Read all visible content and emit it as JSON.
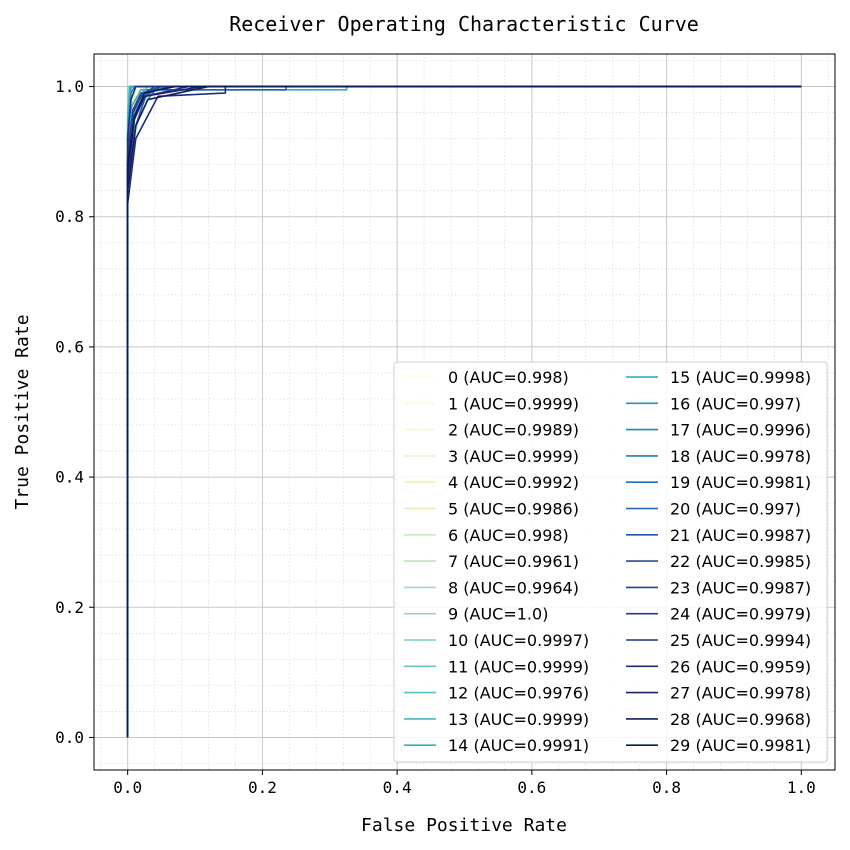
{
  "chart_data": {
    "type": "line",
    "title": "Receiver Operating Characteristic Curve",
    "xlabel": "False Positive Rate",
    "ylabel": "True Positive Rate",
    "xlim": [
      -0.05,
      1.05
    ],
    "ylim": [
      -0.05,
      1.05
    ],
    "xticks": [
      "0.0",
      "0.2",
      "0.4",
      "0.6",
      "0.8",
      "1.0"
    ],
    "yticks": [
      "0.0",
      "0.2",
      "0.4",
      "0.6",
      "0.8",
      "1.0"
    ],
    "grid": true,
    "minor_grid": true,
    "legend_position": "lower-right",
    "legend_columns": 2,
    "series": [
      {
        "name": "0 (AUC=0.998)",
        "color": "#ffffd9",
        "x": [
          0,
          0,
          0.005,
          0.012,
          0.025,
          1
        ],
        "y": [
          0,
          0.86,
          0.95,
          0.985,
          1,
          1
        ]
      },
      {
        "name": "1 (AUC=0.9999)",
        "color": "#fbfdd0",
        "x": [
          0,
          0,
          0.003,
          1
        ],
        "y": [
          0,
          0.93,
          1,
          1
        ]
      },
      {
        "name": "2 (AUC=0.9989)",
        "color": "#f6fbc8",
        "x": [
          0,
          0,
          0.006,
          0.015,
          1
        ],
        "y": [
          0,
          0.9,
          0.97,
          1,
          1
        ]
      },
      {
        "name": "3 (AUC=0.9999)",
        "color": "#f0f9bf",
        "x": [
          0,
          0,
          0.004,
          1
        ],
        "y": [
          0,
          0.94,
          1,
          1
        ]
      },
      {
        "name": "4 (AUC=0.9992)",
        "color": "#e6f5b5",
        "x": [
          0,
          0,
          0.006,
          0.012,
          1
        ],
        "y": [
          0,
          0.91,
          0.97,
          1,
          1
        ]
      },
      {
        "name": "5 (AUC=0.9986)",
        "color": "#daf0b2",
        "x": [
          0,
          0,
          0.008,
          0.02,
          1
        ],
        "y": [
          0,
          0.88,
          0.96,
          1,
          1
        ]
      },
      {
        "name": "6 (AUC=0.998)",
        "color": "#ccebb1",
        "x": [
          0,
          0,
          0.01,
          0.025,
          1
        ],
        "y": [
          0,
          0.87,
          0.95,
          1,
          1
        ]
      },
      {
        "name": "7 (AUC=0.9961)",
        "color": "#bae4b3",
        "x": [
          0,
          0,
          0.012,
          0.02,
          0.035,
          1
        ],
        "y": [
          0,
          0.84,
          0.93,
          0.97,
          1,
          1
        ]
      },
      {
        "name": "8 (AUC=0.9964)",
        "color": "#a5dcb6",
        "x": [
          0,
          0,
          0.01,
          0.022,
          0.04,
          1
        ],
        "y": [
          0,
          0.85,
          0.93,
          0.975,
          1,
          1
        ]
      },
      {
        "name": "9 (AUC=1.0)",
        "color": "#91d4b9",
        "x": [
          0,
          0,
          1
        ],
        "y": [
          0,
          1,
          1
        ]
      },
      {
        "name": "10 (AUC=0.9997)",
        "color": "#7dccbb",
        "x": [
          0,
          0,
          0.004,
          1
        ],
        "y": [
          0,
          0.93,
          1,
          1
        ]
      },
      {
        "name": "11 (AUC=0.9999)",
        "color": "#6ac5be",
        "x": [
          0,
          0,
          0.003,
          1
        ],
        "y": [
          0,
          0.95,
          1,
          1
        ]
      },
      {
        "name": "12 (AUC=0.9976)",
        "color": "#59bec0",
        "x": [
          0,
          0,
          0.008,
          0.018,
          0.03,
          1
        ],
        "y": [
          0,
          0.88,
          0.95,
          0.985,
          1,
          1
        ]
      },
      {
        "name": "13 (AUC=0.9999)",
        "color": "#48b7c2",
        "x": [
          0,
          0,
          0.003,
          1
        ],
        "y": [
          0,
          0.95,
          1,
          1
        ]
      },
      {
        "name": "14 (AUC=0.9991)",
        "color": "#39aec3",
        "x": [
          0,
          0,
          0.006,
          0.02,
          0.325,
          0.325,
          1
        ],
        "y": [
          0,
          0.9,
          0.97,
          0.995,
          0.995,
          1,
          1
        ]
      },
      {
        "name": "15 (AUC=0.9998)",
        "color": "#2ca2c2",
        "x": [
          0,
          0,
          0.005,
          1
        ],
        "y": [
          0,
          0.93,
          1,
          1
        ]
      },
      {
        "name": "16 (AUC=0.997)",
        "color": "#2396c0",
        "x": [
          0,
          0,
          0.012,
          0.03,
          0.045,
          1
        ],
        "y": [
          0,
          0.86,
          0.94,
          0.98,
          1,
          1
        ]
      },
      {
        "name": "17 (AUC=0.9996)",
        "color": "#1e88bc",
        "x": [
          0,
          0,
          0.005,
          0.01,
          1
        ],
        "y": [
          0,
          0.92,
          0.99,
          1,
          1
        ]
      },
      {
        "name": "18 (AUC=0.9978)",
        "color": "#1e7bb6",
        "x": [
          0,
          0,
          0.01,
          0.025,
          0.05,
          1
        ],
        "y": [
          0,
          0.87,
          0.95,
          0.985,
          1,
          1
        ]
      },
      {
        "name": "19 (AUC=0.9981)",
        "color": "#206fb0",
        "x": [
          0,
          0,
          0.01,
          0.03,
          0.06,
          1
        ],
        "y": [
          0,
          0.88,
          0.955,
          0.99,
          1,
          1
        ]
      },
      {
        "name": "20 (AUC=0.997)",
        "color": "#2263a9",
        "x": [
          0,
          0,
          0.012,
          0.03,
          0.235,
          0.235,
          1
        ],
        "y": [
          0,
          0.85,
          0.94,
          0.995,
          0.995,
          1,
          1
        ]
      },
      {
        "name": "21 (AUC=0.9987)",
        "color": "#2457a2",
        "x": [
          0,
          0,
          0.008,
          0.022,
          0.05,
          1
        ],
        "y": [
          0,
          0.89,
          0.96,
          0.99,
          1,
          1
        ]
      },
      {
        "name": "22 (AUC=0.9985)",
        "color": "#254c9c",
        "x": [
          0,
          0,
          0.008,
          0.02,
          0.04,
          1
        ],
        "y": [
          0,
          0.89,
          0.96,
          0.985,
          1,
          1
        ]
      },
      {
        "name": "23 (AUC=0.9987)",
        "color": "#254196",
        "x": [
          0,
          0,
          0.008,
          0.02,
          0.07,
          1
        ],
        "y": [
          0,
          0.9,
          0.965,
          0.99,
          1,
          1
        ]
      },
      {
        "name": "24 (AUC=0.9979)",
        "color": "#24378e",
        "x": [
          0,
          0,
          0.01,
          0.025,
          0.09,
          1
        ],
        "y": [
          0,
          0.87,
          0.95,
          0.985,
          1,
          1
        ]
      },
      {
        "name": "25 (AUC=0.9994)",
        "color": "#222f84",
        "x": [
          0,
          0,
          0.005,
          0.012,
          1
        ],
        "y": [
          0,
          0.92,
          0.98,
          1,
          1
        ]
      },
      {
        "name": "26 (AUC=0.9959)",
        "color": "#1f2979",
        "x": [
          0,
          0,
          0.012,
          0.045,
          0.145,
          0.145,
          1
        ],
        "y": [
          0,
          0.82,
          0.92,
          0.985,
          0.99,
          1,
          1
        ]
      },
      {
        "name": "27 (AUC=0.9978)",
        "color": "#1b236d",
        "x": [
          0,
          0,
          0.01,
          0.025,
          0.11,
          1
        ],
        "y": [
          0,
          0.86,
          0.95,
          0.985,
          1,
          1
        ]
      },
      {
        "name": "28 (AUC=0.9968)",
        "color": "#151d60",
        "x": [
          0,
          0,
          0.012,
          0.03,
          0.12,
          1
        ],
        "y": [
          0,
          0.84,
          0.94,
          0.98,
          1,
          1
        ]
      },
      {
        "name": "29 (AUC=0.9981)",
        "color": "#081d58",
        "x": [
          0,
          0,
          0.01,
          0.025,
          0.07,
          1
        ],
        "y": [
          0,
          0.88,
          0.955,
          0.99,
          1,
          1
        ]
      }
    ]
  }
}
